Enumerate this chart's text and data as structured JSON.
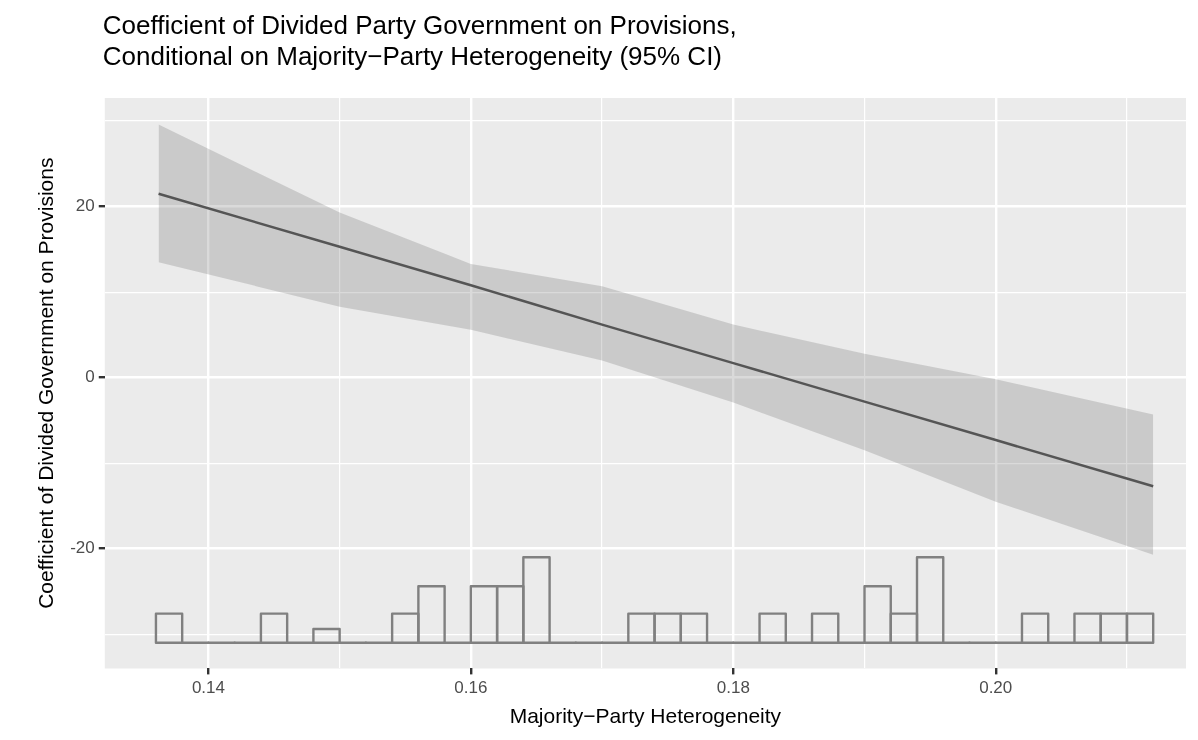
{
  "chart_data": {
    "type": "line",
    "title": "Coefficient of Divided Party Government on Provisions,\nConditional on Majority−Party Heterogeneity (95% CI)",
    "xlabel": "Majority−Party Heterogeneity",
    "ylabel": "Coefficient of Divided Government on Provisions",
    "xlim": [
      0.1321,
      0.2145
    ],
    "xticks": [
      0.14,
      {
        "value": 0.15,
        "label": null
      },
      0.16,
      {
        "value": 0.17,
        "label": null
      },
      0.18,
      {
        "value": 0.19,
        "label": null
      },
      {
        "value": 0.2,
        "label": "0.20"
      },
      {
        "value": 0.21,
        "label": null
      }
    ],
    "ylim": [
      -34,
      32.7
    ],
    "yticks": [
      {
        "value": -30,
        "label": null
      },
      -20,
      {
        "value": -10,
        "label": null
      },
      0,
      {
        "value": 10,
        "label": null
      },
      20,
      {
        "value": 30,
        "label": null
      }
    ],
    "grid": true,
    "series": [
      {
        "color": "#555555",
        "x": [
          0.1362,
          0.15,
          0.16,
          0.17,
          0.18,
          0.19,
          0.2,
          0.212
        ],
        "values": [
          21.5,
          15.3,
          10.8,
          6.2,
          1.7,
          -2.8,
          -7.3,
          -12.7
        ],
        "lower": [
          13.5,
          8.3,
          5.6,
          2.0,
          -2.9,
          -8.5,
          -14.5,
          -20.7
        ],
        "upper": [
          29.6,
          19.3,
          13.3,
          10.7,
          6.2,
          2.8,
          -0.2,
          -4.3
        ]
      },
      {
        "type": "histogram",
        "color": "#808080",
        "bins": [
          0.136,
          0.138,
          0.14,
          0.142,
          0.144,
          0.146,
          0.148,
          0.15,
          0.152,
          0.154,
          0.156,
          0.158,
          0.16,
          0.162,
          0.164,
          0.166,
          0.168,
          0.17,
          0.172,
          0.174,
          0.176,
          0.178,
          0.18,
          0.182,
          0.184,
          0.186,
          0.188,
          0.19,
          0.192,
          0.194,
          0.196,
          0.198,
          0.2,
          0.202,
          0.204,
          0.206,
          0.208,
          0.21,
          0.212
        ],
        "values": [
          3.4,
          0,
          0,
          0,
          3.4,
          0,
          1.6,
          0,
          0,
          3.4,
          6.6,
          0,
          6.6,
          6.6,
          10,
          0,
          0,
          0,
          3.4,
          3.4,
          3.4,
          0,
          0,
          3.4,
          0,
          3.4,
          0,
          6.6,
          3.4,
          10,
          0,
          0,
          0,
          3.4,
          0,
          3.4,
          3.4,
          3.4
        ],
        "base": [
          -31,
          -31,
          -31,
          -31,
          -31,
          -31,
          -31,
          -31,
          -31,
          -31,
          -31,
          -31,
          -31,
          -31,
          -31,
          -31,
          -31,
          -31,
          -31,
          -31,
          -31,
          -31,
          -31,
          -31,
          -31,
          -31,
          -31,
          -31,
          -31,
          -31,
          -31,
          -31,
          -31,
          -31,
          -31,
          -31,
          -31,
          -31
        ]
      }
    ]
  }
}
